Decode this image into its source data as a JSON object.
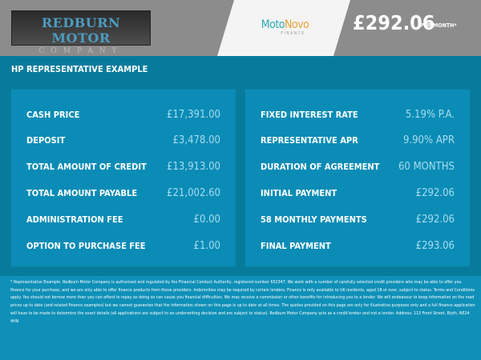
{
  "header": {
    "dealer_logo": {
      "line1": "REDBURN MOTOR",
      "line2": "COMPANY"
    },
    "finance_logo": {
      "moto": "Moto",
      "novo": "Novo",
      "sub": "FINANCE"
    },
    "monthly_price": "£292.06",
    "per_month": "PER MONTH*"
  },
  "title": "HP REPRESENTATIVE EXAMPLE",
  "left_panel": [
    {
      "label": "CASH PRICE",
      "value": "£17,391.00"
    },
    {
      "label": "DEPOSIT",
      "value": "£3,478.00"
    },
    {
      "label": "TOTAL AMOUNT OF CREDIT",
      "value": "£13,913.00"
    },
    {
      "label": "TOTAL AMOUNT PAYABLE",
      "value": "£21,002.60"
    },
    {
      "label": "ADMINISTRATION FEE",
      "value": "£0.00"
    },
    {
      "label": "OPTION TO PURCHASE FEE",
      "value": "£1.00"
    }
  ],
  "right_panel": [
    {
      "label": "FIXED INTEREST RATE",
      "value": "5.19% P.A."
    },
    {
      "label": "REPRESENTATIVE APR",
      "value": "9.90% APR"
    },
    {
      "label": "DURATION OF AGREEMENT",
      "value": "60 MONTHS"
    },
    {
      "label": "INITIAL PAYMENT",
      "value": "£292.06"
    },
    {
      "label": "58 MONTHLY PAYMENTS",
      "value": "£292.06"
    },
    {
      "label": "FINAL PAYMENT",
      "value": "£293.06"
    }
  ],
  "disclaimer": "* Representative Example. Redburn Motor Company is authorised and regulated by the Financial Conduct Authority, registered number 652347. We work with a number of carefully selected credit providers who may be able to offer you finance for your purchase, and we are only able to offer finance products from these providers. Indemnities may be required by certain lenders. Finance is only available to UK residents, aged 18 or over, subject to status. Terms and Conditions apply. You should not borrow more than you can afford to repay as doing so can cause you financial difficulties. We may receive a commission or other benefits for introducing you to a lender. We will endeavour to keep information on the road prices up to date (and related finance examples) but we cannot guarantee that the information shown on this page is up to date at all times. The quotes provided on this page are only for illustrative purposes only and a full finance application will have to be made to determine the exact details (all applications are subject to an underwriting decision and are subject to status). Redburn Motor Company acts as a credit broker and not a lender. Address: 113 Front Street, Blyth, NE24 4HN"
}
